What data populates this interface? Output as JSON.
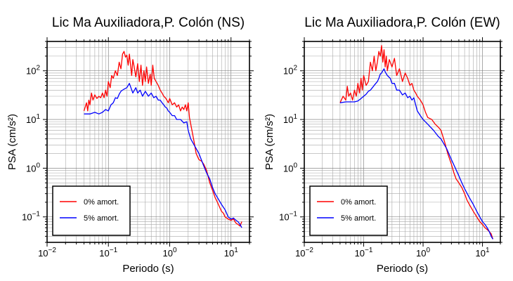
{
  "chart_data": [
    {
      "type": "line",
      "title": "Lic Ma Auxiliadora,P. Colón (NS)",
      "xlabel": "Periodo (s)",
      "ylabel": "PSA (cm/s²)",
      "xlim": [
        0.01,
        20
      ],
      "ylim": [
        0.03,
        400
      ],
      "xscale": "log",
      "yscale": "log",
      "grid": true,
      "legend_position": "bottom-left",
      "xtick_labels": [
        {
          "base": "10",
          "exp": "−2"
        },
        {
          "base": "10",
          "exp": "−1"
        },
        {
          "base": "10",
          "exp": "0"
        },
        {
          "base": "10",
          "exp": "1"
        }
      ],
      "ytick_labels": [
        {
          "base": "10",
          "exp": "−1"
        },
        {
          "base": "10",
          "exp": "0"
        },
        {
          "base": "10",
          "exp": "1"
        },
        {
          "base": "10",
          "exp": "2"
        }
      ],
      "series": [
        {
          "name": "0% amort.",
          "color": "#ff0000",
          "x": [
            0.04,
            0.044,
            0.046,
            0.048,
            0.05,
            0.053,
            0.056,
            0.06,
            0.065,
            0.07,
            0.075,
            0.08,
            0.085,
            0.09,
            0.095,
            0.1,
            0.107,
            0.113,
            0.12,
            0.13,
            0.14,
            0.15,
            0.16,
            0.17,
            0.18,
            0.19,
            0.2,
            0.21,
            0.22,
            0.24,
            0.25,
            0.26,
            0.28,
            0.3,
            0.32,
            0.34,
            0.36,
            0.38,
            0.4,
            0.42,
            0.45,
            0.48,
            0.5,
            0.53,
            0.56,
            0.6,
            0.65,
            0.7,
            0.75,
            0.8,
            0.85,
            0.9,
            0.95,
            1.0,
            1.1,
            1.2,
            1.3,
            1.4,
            1.5,
            1.6,
            1.7,
            1.8,
            1.9,
            2.0,
            2.1,
            2.3,
            2.5,
            2.7,
            3.0,
            3.3,
            3.6,
            4.0,
            4.5,
            5.0,
            5.5,
            6.0,
            6.5,
            7.0,
            7.5,
            8.0,
            9.0,
            10.0,
            11.0,
            12.0,
            13.0,
            14.0,
            15.0
          ],
          "y": [
            15,
            22,
            15,
            25,
            20,
            35,
            25,
            32,
            27,
            30,
            28,
            35,
            28,
            40,
            30,
            60,
            45,
            80,
            70,
            100,
            80,
            150,
            110,
            220,
            250,
            190,
            210,
            130,
            220,
            80,
            170,
            130,
            75,
            140,
            60,
            130,
            50,
            100,
            60,
            120,
            55,
            85,
            50,
            130,
            70,
            60,
            50,
            40,
            35,
            30,
            28,
            25,
            22,
            27,
            20,
            22,
            18,
            20,
            15,
            18,
            16,
            20,
            15,
            22,
            11,
            6,
            3.5,
            2,
            1.5,
            1.4,
            1.2,
            0.9,
            0.5,
            0.35,
            0.25,
            0.2,
            0.16,
            0.13,
            0.12,
            0.1,
            0.09,
            0.085,
            0.09,
            0.075,
            0.07,
            0.065,
            0.08
          ]
        },
        {
          "name": "5% amort.",
          "color": "#0000ff",
          "x": [
            0.04,
            0.05,
            0.06,
            0.07,
            0.08,
            0.09,
            0.1,
            0.11,
            0.12,
            0.13,
            0.14,
            0.15,
            0.16,
            0.18,
            0.2,
            0.22,
            0.25,
            0.28,
            0.3,
            0.33,
            0.36,
            0.4,
            0.45,
            0.5,
            0.55,
            0.6,
            0.65,
            0.7,
            0.75,
            0.8,
            0.85,
            0.9,
            0.95,
            1.0,
            1.1,
            1.2,
            1.3,
            1.5,
            1.7,
            1.9,
            2.0,
            2.2,
            2.5,
            3.0,
            3.5,
            4.0,
            4.5,
            5.0,
            5.5,
            6.0,
            7.0,
            8.0,
            9.0,
            10.0,
            11.0,
            12.0,
            13.0,
            14.0,
            15.0
          ],
          "y": [
            13,
            13,
            14,
            13,
            14,
            16,
            15,
            20,
            22,
            28,
            27,
            33,
            38,
            42,
            45,
            55,
            35,
            45,
            35,
            40,
            30,
            38,
            30,
            35,
            28,
            30,
            25,
            25,
            22,
            20,
            18,
            17,
            15,
            14,
            12,
            12,
            10,
            10,
            8.5,
            9,
            6,
            4,
            3,
            2,
            1.2,
            0.8,
            0.6,
            0.4,
            0.3,
            0.25,
            0.18,
            0.14,
            0.1,
            0.09,
            0.095,
            0.085,
            0.08,
            0.07,
            0.06
          ]
        }
      ]
    },
    {
      "type": "line",
      "title": "Lic Ma Auxiliadora,P. Colón (EW)",
      "xlabel": "Periodo (s)",
      "ylabel": "PSA (cm/s²)",
      "xlim": [
        0.01,
        20
      ],
      "ylim": [
        0.03,
        400
      ],
      "xscale": "log",
      "yscale": "log",
      "grid": true,
      "legend_position": "bottom-left",
      "xtick_labels": [
        {
          "base": "10",
          "exp": "−2"
        },
        {
          "base": "10",
          "exp": "−1"
        },
        {
          "base": "10",
          "exp": "0"
        },
        {
          "base": "10",
          "exp": "1"
        }
      ],
      "ytick_labels": [
        {
          "base": "10",
          "exp": "−1"
        },
        {
          "base": "10",
          "exp": "0"
        },
        {
          "base": "10",
          "exp": "1"
        },
        {
          "base": "10",
          "exp": "2"
        }
      ],
      "series": [
        {
          "name": "0% amort.",
          "color": "#ff0000",
          "x": [
            0.04,
            0.045,
            0.05,
            0.053,
            0.056,
            0.06,
            0.065,
            0.07,
            0.075,
            0.08,
            0.085,
            0.09,
            0.095,
            0.1,
            0.11,
            0.12,
            0.13,
            0.14,
            0.15,
            0.16,
            0.17,
            0.18,
            0.19,
            0.2,
            0.21,
            0.22,
            0.23,
            0.24,
            0.25,
            0.27,
            0.3,
            0.33,
            0.36,
            0.4,
            0.45,
            0.5,
            0.55,
            0.6,
            0.65,
            0.7,
            0.75,
            0.8,
            0.9,
            1.0,
            1.1,
            1.2,
            1.4,
            1.6,
            1.8,
            2.0,
            2.3,
            2.6,
            3.0,
            3.3,
            3.6,
            4.0,
            4.5,
            5.0,
            5.5,
            6.0,
            7.0,
            8.0,
            9.0,
            10.0,
            11.0,
            12.0,
            13.0,
            14.0,
            15.0
          ],
          "y": [
            22,
            30,
            25,
            48,
            30,
            35,
            25,
            40,
            30,
            55,
            35,
            70,
            40,
            80,
            50,
            60,
            150,
            100,
            200,
            100,
            150,
            250,
            200,
            330,
            150,
            270,
            120,
            200,
            100,
            170,
            120,
            180,
            80,
            110,
            60,
            90,
            70,
            50,
            55,
            40,
            35,
            30,
            25,
            20,
            14,
            11,
            10,
            8,
            7,
            6,
            3.5,
            2,
            1.2,
            0.8,
            0.6,
            0.5,
            0.4,
            0.3,
            0.22,
            0.18,
            0.13,
            0.1,
            0.08,
            0.07,
            0.06,
            0.055,
            0.05,
            0.045,
            0.035
          ]
        },
        {
          "name": "5% amort.",
          "color": "#0000ff",
          "x": [
            0.04,
            0.05,
            0.06,
            0.07,
            0.08,
            0.09,
            0.1,
            0.11,
            0.12,
            0.13,
            0.14,
            0.15,
            0.16,
            0.17,
            0.18,
            0.19,
            0.2,
            0.21,
            0.22,
            0.23,
            0.25,
            0.28,
            0.3,
            0.33,
            0.36,
            0.4,
            0.45,
            0.5,
            0.55,
            0.6,
            0.65,
            0.7,
            0.75,
            0.8,
            0.9,
            1.0,
            1.2,
            1.5,
            1.8,
            2.0,
            2.5,
            3.0,
            3.5,
            4.0,
            4.5,
            5.0,
            6.0,
            7.0,
            8.0,
            9.0,
            10.0,
            11.0,
            12.0,
            13.0,
            14.0,
            15.0
          ],
          "y": [
            22,
            23,
            23,
            23,
            24,
            27,
            30,
            33,
            38,
            40,
            45,
            50,
            55,
            60,
            70,
            85,
            90,
            100,
            110,
            95,
            80,
            70,
            55,
            55,
            40,
            40,
            32,
            35,
            28,
            30,
            25,
            28,
            20,
            15,
            12,
            10,
            8,
            6,
            4.5,
            4,
            2.5,
            1.5,
            1,
            0.7,
            0.5,
            0.38,
            0.25,
            0.18,
            0.13,
            0.1,
            0.08,
            0.07,
            0.06,
            0.05,
            0.04,
            0.035
          ]
        }
      ]
    }
  ]
}
